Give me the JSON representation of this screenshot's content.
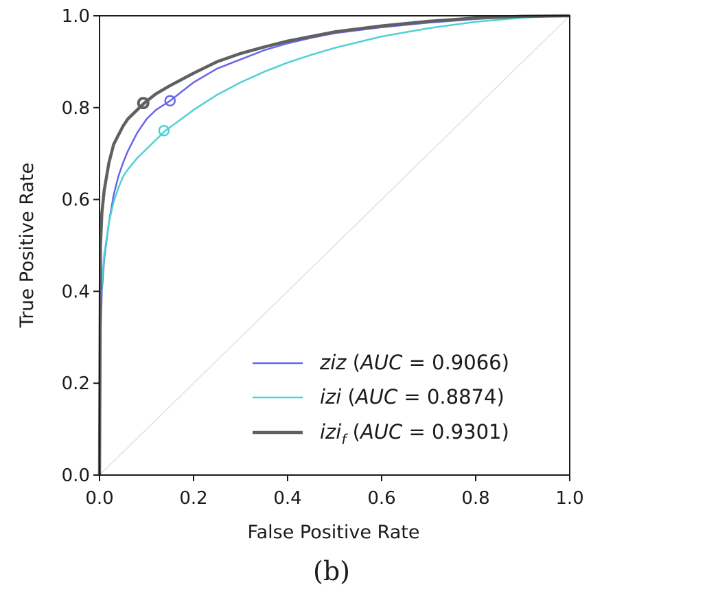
{
  "chart_data": {
    "type": "line",
    "xlabel": "False Positive Rate",
    "ylabel": "True Positive Rate",
    "xlim": [
      0.0,
      1.0
    ],
    "ylim": [
      0.0,
      1.0
    ],
    "xticks": [
      "0.0",
      "0.2",
      "0.4",
      "0.6",
      "0.8",
      "1.0"
    ],
    "yticks": [
      "0.0",
      "0.2",
      "0.4",
      "0.6",
      "0.8",
      "1.0"
    ],
    "grid": false,
    "legend_position": "lower-right",
    "caption": "(b)",
    "reference_line": {
      "x": [
        0,
        1
      ],
      "y": [
        0,
        1
      ],
      "color": "#d9d9d9"
    },
    "series": [
      {
        "name": "ziz",
        "legend_parts": {
          "name": "ziz",
          "open": " (",
          "auc_label": "AUC",
          "eq": " = ",
          "auc_value": "0.9066",
          "close": ")"
        },
        "color": "#6666ee",
        "x": [
          0,
          0.002,
          0.005,
          0.01,
          0.02,
          0.03,
          0.04,
          0.05,
          0.06,
          0.08,
          0.1,
          0.12,
          0.15,
          0.2,
          0.25,
          0.3,
          0.35,
          0.4,
          0.45,
          0.5,
          0.6,
          0.7,
          0.8,
          0.9,
          1.0
        ],
        "y": [
          0,
          0.3,
          0.4,
          0.47,
          0.55,
          0.61,
          0.65,
          0.68,
          0.705,
          0.745,
          0.775,
          0.795,
          0.815,
          0.855,
          0.885,
          0.905,
          0.925,
          0.94,
          0.952,
          0.962,
          0.975,
          0.985,
          0.993,
          0.998,
          1.0
        ],
        "marker": {
          "x": 0.15,
          "y": 0.815
        }
      },
      {
        "name": "izi",
        "legend_parts": {
          "name": "izi",
          "open": " (",
          "auc_label": "AUC",
          "eq": " = ",
          "auc_value": "0.8874",
          "close": ")"
        },
        "color": "#4fd1d3",
        "x": [
          0,
          0.002,
          0.005,
          0.01,
          0.02,
          0.03,
          0.04,
          0.05,
          0.06,
          0.08,
          0.1,
          0.12,
          0.14,
          0.17,
          0.2,
          0.25,
          0.3,
          0.35,
          0.4,
          0.45,
          0.5,
          0.6,
          0.7,
          0.8,
          0.9,
          1.0
        ],
        "y": [
          0,
          0.33,
          0.42,
          0.48,
          0.55,
          0.595,
          0.625,
          0.65,
          0.665,
          0.69,
          0.71,
          0.73,
          0.75,
          0.772,
          0.795,
          0.828,
          0.855,
          0.878,
          0.898,
          0.915,
          0.93,
          0.955,
          0.973,
          0.987,
          0.996,
          1.0
        ],
        "marker": {
          "x": 0.137,
          "y": 0.75
        }
      },
      {
        "name": "izi_f",
        "legend_parts": {
          "name": "izi",
          "sub": "f",
          "open": " (",
          "auc_label": "AUC",
          "eq": " = ",
          "auc_value": "0.9301",
          "close": ")"
        },
        "color": "#606060",
        "x": [
          0,
          0.002,
          0.005,
          0.01,
          0.02,
          0.03,
          0.04,
          0.05,
          0.06,
          0.08,
          0.095,
          0.12,
          0.15,
          0.2,
          0.25,
          0.3,
          0.35,
          0.4,
          0.5,
          0.6,
          0.7,
          0.8,
          0.9,
          1.0
        ],
        "y": [
          0,
          0.5,
          0.57,
          0.62,
          0.68,
          0.72,
          0.74,
          0.76,
          0.775,
          0.795,
          0.81,
          0.83,
          0.848,
          0.875,
          0.9,
          0.918,
          0.932,
          0.945,
          0.965,
          0.978,
          0.988,
          0.995,
          0.999,
          1.0
        ],
        "marker": {
          "x": 0.093,
          "y": 0.81
        }
      }
    ]
  }
}
